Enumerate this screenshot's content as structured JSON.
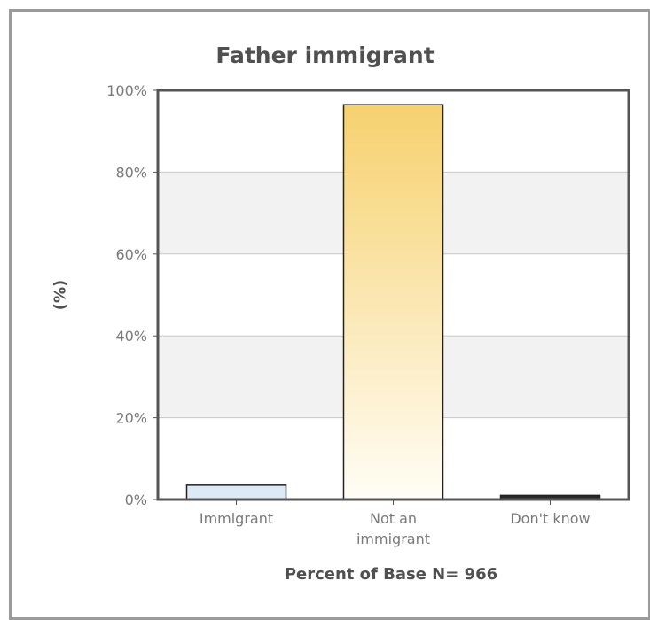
{
  "chart_data": {
    "type": "bar",
    "title": "Father immigrant",
    "xlabel": "Percent of Base N= 966",
    "ylabel": "(%)",
    "categories": [
      [
        "Immigrant"
      ],
      [
        "Not an",
        "immigrant"
      ],
      [
        "Don't know"
      ]
    ],
    "values": [
      3.5,
      96.5,
      1.0
    ],
    "ylim": [
      0,
      100
    ],
    "yticks": [
      "0%",
      "20%",
      "40%",
      "60%",
      "80%",
      "100%"
    ],
    "grid": true,
    "colors": {
      "bar_immigrant": "#dce9f7",
      "bar_not_immigrant_top": "#f6d16e",
      "bar_not_immigrant_bottom": "#fffdf6",
      "bar_dont_know": "#2a2a2a",
      "band": "#f2f2f2",
      "grid": "#c8c8c8",
      "axis": "#555555",
      "text": "#7a7a7a"
    }
  }
}
